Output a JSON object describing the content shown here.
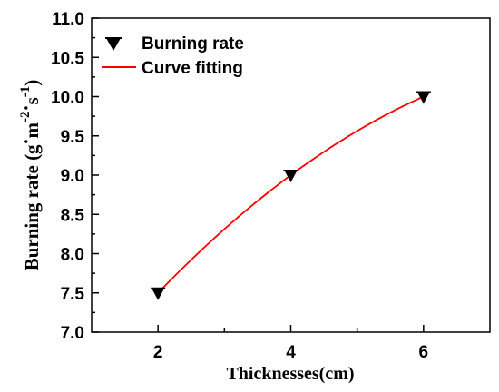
{
  "chart_data": {
    "type": "scatter",
    "title": "",
    "xlabel": "Thicknesses(cm)",
    "ylabel": {
      "text": "Burning rate (g",
      "middot1": "·",
      "m": "m",
      "sup1": "-2",
      "middot2": "·",
      "s": "s",
      "sup2": "-1",
      "close": ")"
    },
    "xlim": [
      1,
      7
    ],
    "ylim": [
      7.0,
      11.0
    ],
    "x_ticks": [
      2,
      4,
      6
    ],
    "x_tick_labels": [
      "2",
      "4",
      "6"
    ],
    "y_ticks": [
      7.0,
      7.5,
      8.0,
      8.5,
      9.0,
      9.5,
      10.0,
      10.5,
      11.0
    ],
    "y_tick_labels": [
      "7.0",
      "7.5",
      "8.0",
      "8.5",
      "9.0",
      "9.5",
      "10.0",
      "10.5",
      "11.0"
    ],
    "grid": false,
    "legend_position": "top-left",
    "series": [
      {
        "name": "Burning rate",
        "marker": "down-triangle",
        "color": "#000000",
        "x": [
          2,
          4,
          6
        ],
        "y": [
          7.5,
          9.0,
          10.0
        ]
      },
      {
        "name": "Curve fitting",
        "type": "line",
        "color": "#ff0000",
        "x": [
          2,
          4,
          6
        ],
        "y": [
          7.5,
          9.0,
          10.0
        ]
      }
    ]
  }
}
